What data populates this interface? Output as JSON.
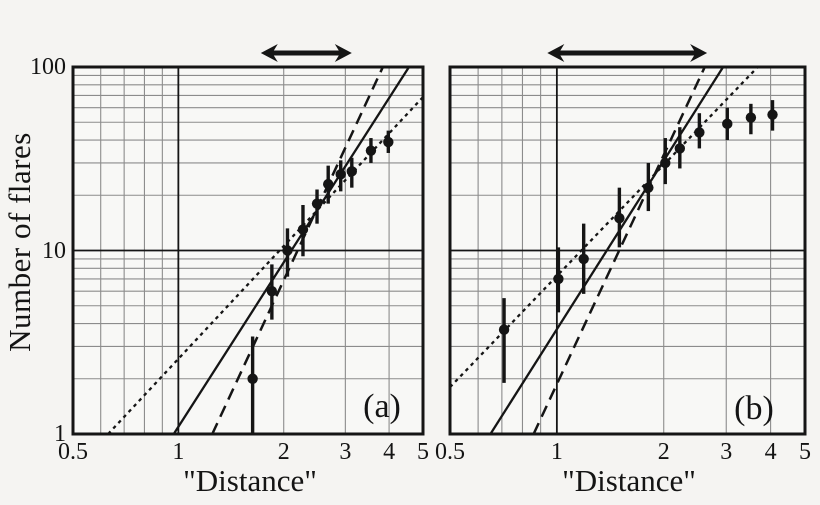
{
  "figure": {
    "y_axis_title": "Number of flares",
    "background_color": "#f5f4f2",
    "plot_bg_color": "#f8f8f6",
    "ink_color": "#151515",
    "grid_color": "#8c8c8c"
  },
  "chart_data": [
    {
      "type": "scatter",
      "panel_label": "(a)",
      "xlabel": "\"Distance\"",
      "ylabel": "Number of flares",
      "xscale": "log",
      "yscale": "log",
      "xlim": [
        0.5,
        5
      ],
      "ylim": [
        1,
        100
      ],
      "x_ticks": [
        "0.5",
        "1",
        "2",
        "3",
        "4",
        "5"
      ],
      "x_tick_values": [
        0.5,
        1,
        2,
        3,
        4,
        5
      ],
      "y_ticks": [
        "1",
        "10",
        "100"
      ],
      "y_tick_values": [
        1,
        10,
        100
      ],
      "grid": {
        "minor_x": [
          0.6,
          0.7,
          0.8,
          0.9,
          2,
          3,
          4
        ],
        "minor_y": [
          2,
          3,
          4,
          5,
          6,
          7,
          8,
          9,
          20,
          30,
          40,
          50,
          60,
          70,
          80,
          90
        ],
        "emphasized_x": [
          1
        ],
        "emphasized_y": [
          10
        ]
      },
      "points": {
        "x": [
          1.63,
          1.85,
          2.05,
          2.27,
          2.49,
          2.68,
          2.91,
          3.13,
          3.55,
          3.98
        ],
        "y": [
          2,
          6,
          10,
          13,
          18,
          23,
          26,
          27,
          35,
          39
        ],
        "y_err_low": [
          1.0,
          4.2,
          7.2,
          9.3,
          14,
          18,
          21,
          22,
          30,
          34
        ],
        "y_err_high": [
          3.4,
          8.4,
          13.2,
          17.7,
          21.5,
          29,
          31,
          32,
          41,
          45
        ]
      },
      "fit_lines": [
        {
          "name": "dotted-powerlaw",
          "style": "dotted",
          "slope": 2.0,
          "points": [
            [
              0.63,
              1
            ],
            [
              5.0,
              68.6
            ]
          ]
        },
        {
          "name": "solid-powerlaw",
          "style": "solid",
          "slope": 3.0,
          "points": [
            [
              0.97,
              1
            ],
            [
              4.56,
              100
            ]
          ]
        },
        {
          "name": "dashed-powerlaw",
          "style": "long-dash",
          "slope": 4.1,
          "points": [
            [
              1.25,
              1
            ],
            [
              3.84,
              100
            ]
          ]
        }
      ],
      "fit_range_arrow": {
        "x_start": 1.72,
        "x_end": 3.13
      }
    },
    {
      "type": "scatter",
      "panel_label": "(b)",
      "xlabel": "\"Distance\"",
      "ylabel": "Number of flares",
      "xscale": "log",
      "yscale": "log",
      "xlim": [
        0.5,
        5
      ],
      "ylim": [
        1,
        100
      ],
      "x_ticks": [
        "0.5",
        "1",
        "2",
        "3",
        "4",
        "5"
      ],
      "x_tick_values": [
        0.5,
        1,
        2,
        3,
        4,
        5
      ],
      "y_ticks": [
        "1",
        "10",
        "100"
      ],
      "y_tick_values": [
        1,
        10,
        100
      ],
      "grid": {
        "minor_x": [
          0.6,
          0.7,
          0.8,
          0.9,
          2,
          3,
          4
        ],
        "minor_y": [
          2,
          3,
          4,
          5,
          6,
          7,
          8,
          9,
          20,
          30,
          40,
          50,
          60,
          70,
          80,
          90
        ],
        "emphasized_x": [
          1
        ],
        "emphasized_y": [
          10
        ]
      },
      "points": {
        "x": [
          0.71,
          1.01,
          1.19,
          1.5,
          1.81,
          2.02,
          2.22,
          2.52,
          3.02,
          3.52,
          4.05
        ],
        "y": [
          3.7,
          7,
          9,
          15,
          22,
          30,
          36,
          44,
          49,
          53,
          55
        ],
        "y_err_low": [
          1.9,
          4.6,
          5.8,
          10.4,
          16.4,
          23,
          28,
          36,
          40,
          43,
          45
        ],
        "y_err_high": [
          5.5,
          10.4,
          14,
          22,
          30,
          41,
          47,
          56,
          60,
          63,
          66
        ]
      },
      "fit_lines": [
        {
          "name": "dotted-powerlaw",
          "style": "dotted",
          "slope": 2.0,
          "points": [
            [
              0.5,
              1.8
            ],
            [
              3.68,
              100
            ]
          ]
        },
        {
          "name": "solid-powerlaw",
          "style": "solid",
          "slope": 3.0,
          "points": [
            [
              0.65,
              1
            ],
            [
              2.94,
              100
            ]
          ]
        },
        {
          "name": "dashed-powerlaw",
          "style": "long-dash",
          "slope": 4.2,
          "points": [
            [
              0.86,
              1
            ],
            [
              2.61,
              100
            ]
          ]
        }
      ],
      "fit_range_arrow": {
        "x_start": 0.94,
        "x_end": 2.65
      }
    }
  ]
}
